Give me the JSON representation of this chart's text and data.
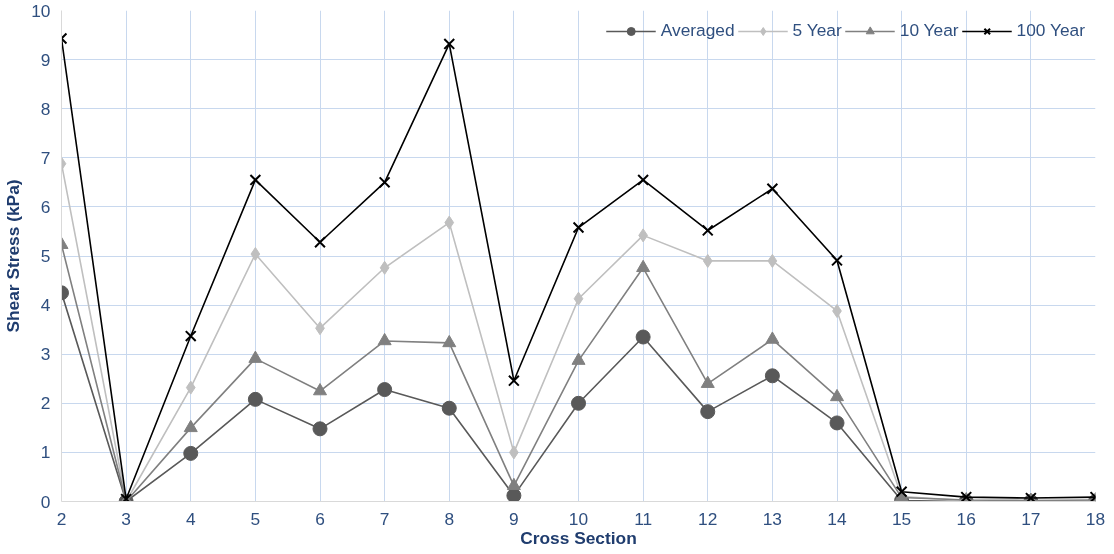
{
  "chart_data": {
    "type": "line",
    "xlabel": "Cross Section",
    "ylabel": "Shear Stress (kPa)",
    "x": [
      2,
      3,
      4,
      5,
      6,
      7,
      8,
      9,
      10,
      11,
      12,
      13,
      14,
      15,
      16,
      17,
      18
    ],
    "xlim": [
      2,
      18
    ],
    "xticks": [
      2,
      3,
      4,
      5,
      6,
      7,
      8,
      9,
      10,
      11,
      12,
      13,
      14,
      15,
      16,
      17,
      18
    ],
    "ylim": [
      0,
      10
    ],
    "yticks": [
      0,
      1,
      2,
      3,
      4,
      5,
      6,
      7,
      8,
      9,
      10
    ],
    "grid": true,
    "legend": "top right",
    "series": [
      {
        "name": "Averaged",
        "color": "#595959",
        "marker": "circle",
        "values": [
          4.25,
          0,
          0.98,
          2.08,
          1.48,
          2.28,
          1.9,
          0.12,
          2.0,
          3.35,
          1.83,
          2.56,
          1.6,
          0.02,
          0,
          0,
          0
        ]
      },
      {
        "name": "5 Year",
        "color": "#bfbfbf",
        "marker": "diamond",
        "values": [
          6.88,
          0,
          2.32,
          5.04,
          3.53,
          4.76,
          5.68,
          1.0,
          4.13,
          5.42,
          4.9,
          4.9,
          3.88,
          0.1,
          0.02,
          0.01,
          0.02
        ]
      },
      {
        "name": "10 Year",
        "color": "#808080",
        "marker": "triangle",
        "values": [
          5.23,
          0,
          1.5,
          2.91,
          2.25,
          3.27,
          3.23,
          0.32,
          2.87,
          4.76,
          2.4,
          3.3,
          2.13,
          0.08,
          0.03,
          0.02,
          0.03
        ]
      },
      {
        "name": "100 Year",
        "color": "#000000",
        "marker": "cross",
        "values": [
          9.43,
          0.05,
          3.37,
          6.55,
          5.28,
          6.5,
          9.32,
          2.46,
          5.58,
          6.55,
          5.52,
          6.37,
          4.91,
          0.2,
          0.09,
          0.07,
          0.09
        ]
      }
    ]
  }
}
